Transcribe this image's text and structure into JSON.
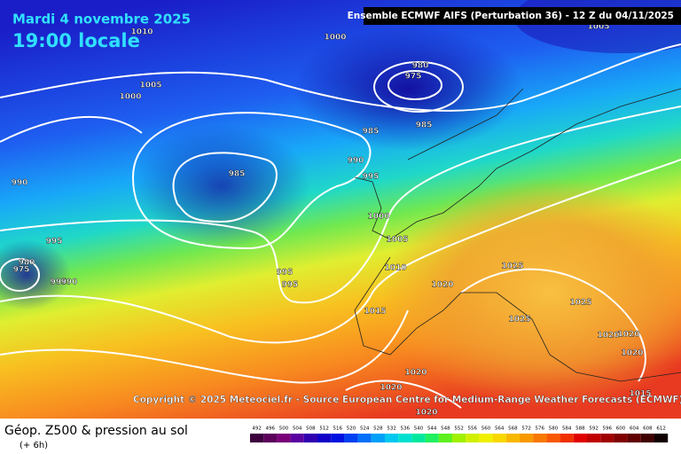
{
  "header": {
    "date": "Mardi 4 novembre 2025",
    "time": "19:00 locale",
    "model": "Ensemble ECMWF AIFS  (Perturbation 36)  -  12 Z du 04/11/2025"
  },
  "copyright": "Copyright © 2025 Meteociel.fr - Source European Centre for Medium-Range Weather Forecasts (ECMWF)",
  "footer": {
    "title": "Géop. Z500 & pression au sol",
    "subtitle": "(+ 6h)"
  },
  "isobar_labels": [
    1010,
    1000,
    1005,
    980,
    975,
    1005,
    1000,
    985,
    985,
    990,
    985,
    995,
    990,
    1000,
    995,
    1005,
    980,
    975,
    1010,
    1025,
    995,
    995,
    995,
    990,
    1020,
    1025,
    1015,
    1025,
    1020,
    1020,
    1020,
    1020,
    1020,
    1015,
    1020
  ],
  "colorbar": {
    "ticks": [
      492,
      496,
      500,
      504,
      508,
      512,
      516,
      520,
      524,
      528,
      532,
      536,
      540,
      544,
      548,
      552,
      556,
      560,
      564,
      568,
      572,
      576,
      580,
      584,
      588,
      592,
      596,
      600,
      604,
      608,
      612
    ],
    "colors": [
      "#3d003d",
      "#5c005c",
      "#7a007a",
      "#5a00a0",
      "#3000b0",
      "#1000c8",
      "#0010e0",
      "#0040f0",
      "#0070f8",
      "#00a0f8",
      "#00c8f0",
      "#00e0d0",
      "#00e8a0",
      "#20f060",
      "#60f020",
      "#a0f000",
      "#d0f000",
      "#f0f000",
      "#f8d800",
      "#f8b800",
      "#f89800",
      "#f87800",
      "#f85800",
      "#f03000",
      "#e00000",
      "#c00000",
      "#a00000",
      "#800000",
      "#600000",
      "#400000",
      "#100000"
    ]
  }
}
